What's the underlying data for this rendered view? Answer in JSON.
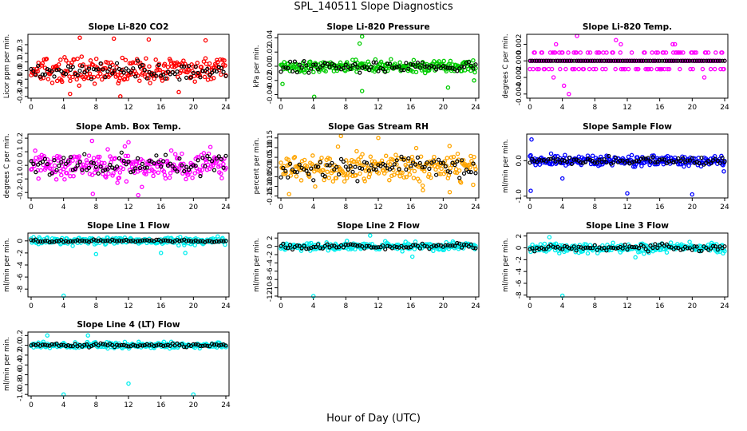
{
  "title": "SPL_140511  Slope Diagnostics",
  "xlabel": "Hour of Day (UTC)",
  "colors": {
    "co2": "#ff0000",
    "pressure": "#00cc00",
    "temp": "#ff00ff",
    "rh": "#ffa500",
    "sample_flow": "#0000ff",
    "line_flow": "#00eeee",
    "overlay": "#000000"
  },
  "chart_data": [
    {
      "id": "co2",
      "type": "scatter",
      "title": "Slope Li-820 CO2",
      "ylabel": "Licor ppm per min.",
      "color_key": "co2",
      "xlim": [
        0,
        24
      ],
      "ylim": [
        -0.32,
        0.42
      ],
      "xticks": [
        "0",
        "4",
        "8",
        "12",
        "16",
        "20",
        "24"
      ],
      "yticks": [
        {
          "v": -0.3,
          "t": "-0.3"
        },
        {
          "v": -0.2,
          "t": "-0.2"
        },
        {
          "v": -0.1,
          "t": "-0.1"
        },
        {
          "v": 0.0,
          "t": "0.0"
        },
        {
          "v": 0.1,
          "t": "0.1"
        },
        {
          "v": 0.2,
          "t": "0.2"
        },
        {
          "v": 0.3,
          "t": "0.3"
        }
      ],
      "spread": 0.13,
      "overlay_spread": 0.08,
      "outliers": [
        {
          "x": 6.0,
          "y": 0.38
        },
        {
          "x": 10.2,
          "y": 0.37
        },
        {
          "x": 14.5,
          "y": 0.36
        },
        {
          "x": 21.5,
          "y": 0.35
        },
        {
          "x": 11.0,
          "y": -0.3
        },
        {
          "x": 4.8,
          "y": -0.27
        },
        {
          "x": 18.2,
          "y": -0.25
        }
      ]
    },
    {
      "id": "pressure",
      "type": "scatter",
      "title": "Slope Li-820 Pressure",
      "ylabel": "kPa per min.",
      "color_key": "pressure",
      "xlim": [
        0,
        24
      ],
      "ylim": [
        -0.045,
        0.045
      ],
      "xticks": [
        "0",
        "4",
        "8",
        "12",
        "16",
        "20",
        "24"
      ],
      "yticks": [
        {
          "v": -0.04,
          "t": "-0.04"
        },
        {
          "v": -0.02,
          "t": "-0.02"
        },
        {
          "v": 0.0,
          "t": "0.00"
        },
        {
          "v": 0.02,
          "t": "0.02"
        },
        {
          "v": 0.04,
          "t": "0.04"
        }
      ],
      "spread": 0.008,
      "overlay_spread": 0.006,
      "outliers": [
        {
          "x": 10.0,
          "y": 0.042
        },
        {
          "x": 9.7,
          "y": 0.032
        },
        {
          "x": 4.1,
          "y": -0.043
        },
        {
          "x": 10.0,
          "y": -0.035
        },
        {
          "x": 20.6,
          "y": -0.03
        },
        {
          "x": 0.2,
          "y": -0.025
        },
        {
          "x": 23.8,
          "y": -0.02
        }
      ]
    },
    {
      "id": "temp",
      "type": "scatter",
      "title": "Slope Li-820 Temp.",
      "ylabel": "degrees C per min.",
      "color_key": "temp",
      "xlim": [
        0,
        24
      ],
      "ylim": [
        -0.0045,
        0.0032
      ],
      "xticks": [
        "0",
        "4",
        "8",
        "12",
        "16",
        "20",
        "24"
      ],
      "yticks": [
        {
          "v": -0.004,
          "t": "-0.004"
        },
        {
          "v": -0.002,
          "t": "-0.002"
        },
        {
          "v": 0.0,
          "t": "0.000"
        },
        {
          "v": 0.002,
          "t": "0.002"
        }
      ],
      "quantize": 0.001,
      "spread": 0.0012,
      "overlay_spread": 0.0003,
      "outliers": [
        {
          "x": 4.8,
          "y": -0.004
        },
        {
          "x": 5.8,
          "y": 0.003
        },
        {
          "x": 10.6,
          "y": 0.0025
        },
        {
          "x": 11.2,
          "y": 0.002
        },
        {
          "x": 17.6,
          "y": 0.002
        },
        {
          "x": 4.2,
          "y": -0.003
        }
      ]
    },
    {
      "id": "ambtemp",
      "type": "scatter",
      "title": "Slope Amb. Box Temp.",
      "ylabel": "degrees C per min.",
      "color_key": "temp",
      "xlim": [
        0,
        24
      ],
      "ylim": [
        -0.24,
        0.23
      ],
      "xticks": [
        "0",
        "4",
        "8",
        "12",
        "16",
        "20",
        "24"
      ],
      "yticks": [
        {
          "v": -0.2,
          "t": "-0.2"
        },
        {
          "v": -0.1,
          "t": "-0.1"
        },
        {
          "v": 0.0,
          "t": "0.0"
        },
        {
          "v": 0.1,
          "t": "0.1"
        },
        {
          "v": 0.2,
          "t": "0.2"
        }
      ],
      "spread": 0.09,
      "overlay_spread": 0.07,
      "outliers": [
        {
          "x": 7.6,
          "y": -0.21
        },
        {
          "x": 13.2,
          "y": -0.22
        },
        {
          "x": 7.5,
          "y": 0.18
        },
        {
          "x": 12.0,
          "y": 0.17
        }
      ]
    },
    {
      "id": "rh",
      "type": "scatter",
      "title": "Slope Gas Stream RH",
      "ylabel": "percent per min.",
      "color_key": "rh",
      "xlim": [
        0,
        24
      ],
      "ylim": [
        -0.16,
        0.17
      ],
      "xticks": [
        "0",
        "4",
        "8",
        "12",
        "16",
        "20",
        "24"
      ],
      "yticks": [
        {
          "v": -0.15,
          "t": "-0.15"
        },
        {
          "v": -0.1,
          "t": "-0.10"
        },
        {
          "v": -0.05,
          "t": "-0.05"
        },
        {
          "v": 0.0,
          "t": "0.00"
        },
        {
          "v": 0.05,
          "t": "0.05"
        },
        {
          "v": 0.1,
          "t": "0.10"
        },
        {
          "v": 0.15,
          "t": "0.15"
        }
      ],
      "spread": 0.07,
      "overlay_spread": 0.05,
      "outliers": [
        {
          "x": 1.0,
          "y": -0.14
        },
        {
          "x": 7.4,
          "y": 0.16
        },
        {
          "x": 12.0,
          "y": 0.15
        },
        {
          "x": 20.8,
          "y": -0.13
        },
        {
          "x": 17.5,
          "y": -0.12
        }
      ]
    },
    {
      "id": "sampleflow",
      "type": "scatter",
      "title": "Slope Sample Flow",
      "ylabel": "ml/min per min.",
      "color_key": "sample_flow",
      "xlim": [
        0,
        24
      ],
      "ylim": [
        -1.05,
        0.75
      ],
      "xticks": [
        "0",
        "4",
        "8",
        "12",
        "16",
        "20",
        "24"
      ],
      "yticks": [
        {
          "v": -1.0,
          "t": "-1.0"
        },
        {
          "v": 0.0,
          "t": "0.0"
        }
      ],
      "spread": 0.13,
      "overlay_spread": 0.08,
      "outliers": [
        {
          "x": 0.2,
          "y": 0.6
        },
        {
          "x": 0.1,
          "y": -0.85
        },
        {
          "x": 12.0,
          "y": -0.92
        },
        {
          "x": 20.0,
          "y": -0.95
        },
        {
          "x": 4.0,
          "y": -0.5
        },
        {
          "x": 23.9,
          "y": -0.3
        }
      ]
    },
    {
      "id": "line1",
      "type": "scatter",
      "title": "Slope Line 1 Flow",
      "ylabel": "ml/min per min.",
      "color_key": "line_flow",
      "xlim": [
        0,
        24
      ],
      "ylim": [
        -9.3,
        1.3
      ],
      "xticks": [
        "0",
        "4",
        "8",
        "12",
        "16",
        "20",
        "24"
      ],
      "yticks": [
        {
          "v": -8,
          "t": "-8"
        },
        {
          "v": -6,
          "t": "-6"
        },
        {
          "v": -4,
          "t": "-4"
        },
        {
          "v": -2,
          "t": "-2"
        },
        {
          "v": 0,
          "t": "0"
        }
      ],
      "spread": 0.55,
      "overlay_spread": 0.2,
      "outliers": [
        {
          "x": 4.0,
          "y": -9.1
        },
        {
          "x": 19.0,
          "y": -2.0
        },
        {
          "x": 16.0,
          "y": -2.0
        },
        {
          "x": 8.0,
          "y": -2.2
        }
      ]
    },
    {
      "id": "line2",
      "type": "scatter",
      "title": "Slope Line 2 Flow",
      "ylabel": "ml/min per min.",
      "color_key": "line_flow",
      "xlim": [
        0,
        24
      ],
      "ylim": [
        -12.2,
        3.2
      ],
      "xticks": [
        "0",
        "4",
        "8",
        "12",
        "16",
        "20",
        "24"
      ],
      "yticks": [
        {
          "v": -12,
          "t": "-12"
        },
        {
          "v": -10,
          "t": "-10"
        },
        {
          "v": -8,
          "t": "-8"
        },
        {
          "v": -6,
          "t": "-6"
        },
        {
          "v": -4,
          "t": "-4"
        },
        {
          "v": -2,
          "t": "-2"
        },
        {
          "v": 0,
          "t": "0"
        },
        {
          "v": 2,
          "t": "2"
        }
      ],
      "spread": 0.9,
      "overlay_spread": 0.6,
      "outliers": [
        {
          "x": 4.0,
          "y": -12.0
        },
        {
          "x": 16.2,
          "y": -2.5
        },
        {
          "x": 11.0,
          "y": 2.6
        }
      ]
    },
    {
      "id": "line3",
      "type": "scatter",
      "title": "Slope Line 3 Flow",
      "ylabel": "ml/min per min.",
      "color_key": "line_flow",
      "xlim": [
        0,
        24
      ],
      "ylim": [
        -8.3,
        2.5
      ],
      "xticks": [
        "0",
        "4",
        "8",
        "12",
        "16",
        "20",
        "24"
      ],
      "yticks": [
        {
          "v": -8,
          "t": "-8"
        },
        {
          "v": -6,
          "t": "-6"
        },
        {
          "v": -4,
          "t": "-4"
        },
        {
          "v": -2,
          "t": "-2"
        },
        {
          "v": 0,
          "t": "0"
        },
        {
          "v": 2,
          "t": "2"
        }
      ],
      "spread": 0.7,
      "overlay_spread": 0.5,
      "outliers": [
        {
          "x": 4.0,
          "y": -8.1
        },
        {
          "x": 2.4,
          "y": 1.8
        },
        {
          "x": 13.0,
          "y": -1.6
        }
      ]
    },
    {
      "id": "line4",
      "type": "scatter",
      "title": "Slope Line 4 (LT) Flow",
      "ylabel": "ml/min per min.",
      "color_key": "line_flow",
      "xlim": [
        0,
        24
      ],
      "ylim": [
        -1.03,
        0.27
      ],
      "xticks": [
        "0",
        "4",
        "8",
        "12",
        "16",
        "20",
        "24"
      ],
      "yticks": [
        {
          "v": -1.0,
          "t": "-1.0"
        },
        {
          "v": -0.8,
          "t": "-0.8"
        },
        {
          "v": -0.6,
          "t": "-0.6"
        },
        {
          "v": -0.4,
          "t": "-0.4"
        },
        {
          "v": -0.2,
          "t": "-0.2"
        },
        {
          "v": 0.0,
          "t": "0.0"
        },
        {
          "v": 0.2,
          "t": "0.2"
        }
      ],
      "spread": 0.05,
      "overlay_spread": 0.03,
      "outliers": [
        {
          "x": 4.0,
          "y": -1.0
        },
        {
          "x": 12.0,
          "y": -0.78
        },
        {
          "x": 20.0,
          "y": -1.0
        },
        {
          "x": 7.0,
          "y": 0.2
        },
        {
          "x": 2.0,
          "y": 0.2
        }
      ]
    }
  ]
}
